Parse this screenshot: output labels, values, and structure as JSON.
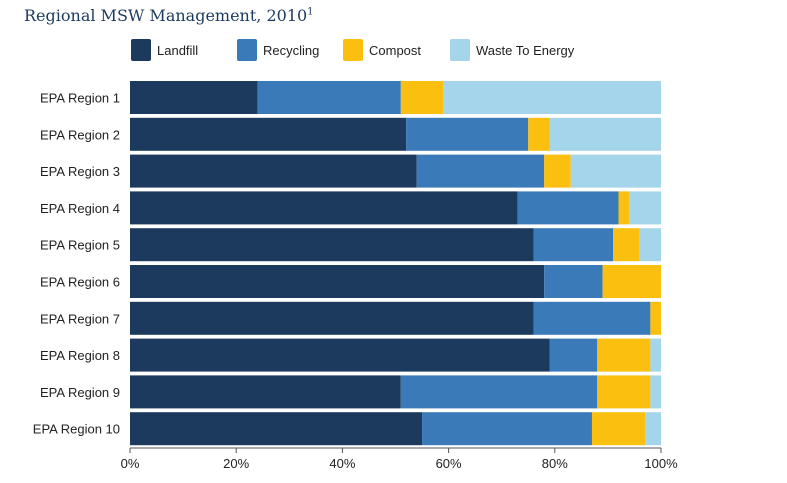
{
  "chart_data": {
    "type": "bar",
    "orientation": "horizontal",
    "stacked": true,
    "title": "Regional MSW Management, 2010",
    "title_footnote": "1",
    "categories": [
      "EPA Region 1",
      "EPA Region 2",
      "EPA Region 3",
      "EPA Region 4",
      "EPA Region 5",
      "EPA Region 6",
      "EPA Region 7",
      "EPA Region 8",
      "EPA Region 9",
      "EPA Region 10"
    ],
    "series": [
      {
        "name": "Landfill",
        "color": "#1c3a5e",
        "values": [
          24,
          52,
          54,
          73,
          76,
          78,
          76,
          79,
          51,
          55
        ]
      },
      {
        "name": "Recycling",
        "color": "#3a7ab8",
        "values": [
          27,
          23,
          24,
          19,
          15,
          11,
          22,
          9,
          37,
          32
        ]
      },
      {
        "name": "Compost",
        "color": "#fbbf10",
        "values": [
          8,
          4,
          5,
          2,
          5,
          11,
          2,
          10,
          10,
          10
        ]
      },
      {
        "name": "Waste To Energy",
        "color": "#a4d5ea",
        "values": [
          41,
          21,
          17,
          6,
          4,
          0,
          0,
          2,
          2,
          3
        ]
      }
    ],
    "xlim": [
      0,
      100
    ],
    "xticks": [
      "0%",
      "20%",
      "40%",
      "60%",
      "80%",
      "100%"
    ],
    "legend_position": "top",
    "grid": false
  }
}
